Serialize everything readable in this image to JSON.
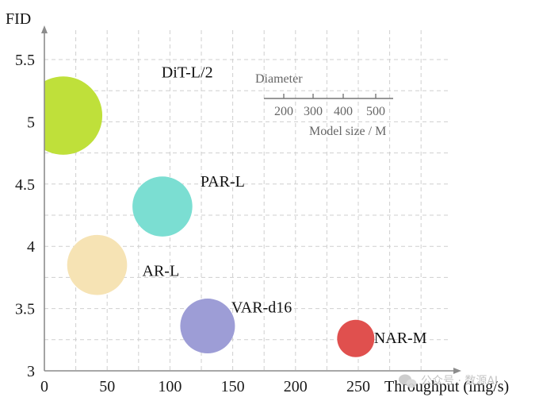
{
  "chart_data": {
    "type": "scatter",
    "xlabel": "Throughput (img/s)",
    "ylabel": "FID",
    "xlim": [
      0,
      260
    ],
    "ylim": [
      3,
      5.5
    ],
    "x_ticks": [
      "0",
      "50",
      "100",
      "150",
      "200",
      "250"
    ],
    "x_tick_values": [
      0,
      50,
      100,
      150,
      200,
      250
    ],
    "y_ticks": [
      "3",
      "3.5",
      "4",
      "4.5",
      "5",
      "5.5"
    ],
    "y_tick_values": [
      3,
      3.5,
      4,
      4.5,
      5,
      5.5
    ],
    "grid": true,
    "points": [
      {
        "name": "DiT-L/2",
        "x": 15,
        "y": 5.05,
        "model_size_m": 458,
        "color": "#bfe03a"
      },
      {
        "name": "PAR-L",
        "x": 94,
        "y": 4.32,
        "model_size_m": 343,
        "color": "#7bded2"
      },
      {
        "name": "AR-L",
        "x": 42,
        "y": 3.85,
        "model_size_m": 343,
        "color": "#f6e3b4"
      },
      {
        "name": "VAR-d16",
        "x": 130,
        "y": 3.36,
        "model_size_m": 310,
        "color": "#9d9dd6"
      },
      {
        "name": "NAR-M",
        "x": 248,
        "y": 3.26,
        "model_size_m": 200,
        "color": "#e0504e"
      }
    ],
    "size_legend": {
      "title": "Diameter",
      "ticks": [
        "200",
        "300",
        "400",
        "500"
      ],
      "caption": "Model size / M"
    }
  },
  "watermark": "公众号 · 数源AI"
}
